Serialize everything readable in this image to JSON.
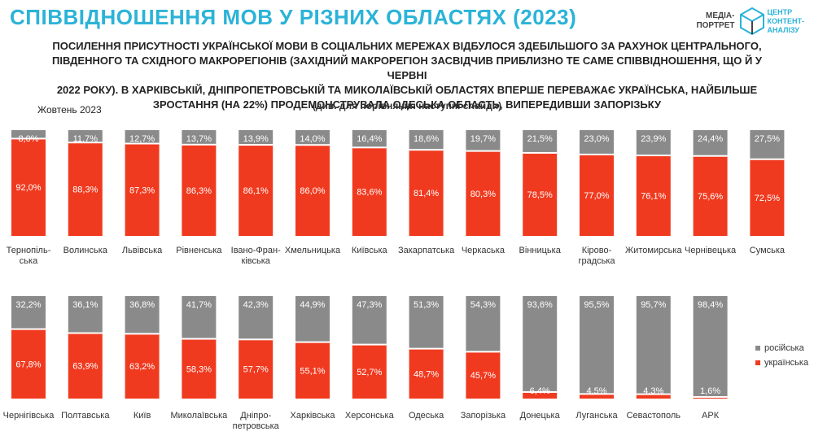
{
  "header": {
    "title": "СПІВВІДНОШЕННЯ МОВ У РІЗНИХ ОБЛАСТЯХ (2023)",
    "logo_prefix_1": "МЕДІА-",
    "logo_prefix_2": "ПОРТРЕТ",
    "logo_name_1": "ЦЕНТР",
    "logo_name_2": "КОНТЕНТ-",
    "logo_name_3": "АНАЛІЗУ"
  },
  "subtitle_lines": [
    "ПОСИЛЕННЯ ПРИСУТНОСТІ УКРАЇНСЬКОЇ МОВИ В СОЦІАЛЬНИХ МЕРЕЖАХ ВІДБУЛОСЯ ЗДЕБІЛЬШОГО ЗА РАХУНОК ЦЕНТРАЛЬНОГО,",
    "ПІВДЕННОГО ТА СХІДНОГО МАКРОРЕГІОНІВ (ЗАХІДНИЙ МАКРОРЕГІОН ЗАСВІДЧИВ ПРИБЛИЗНО ТЕ САМЕ СПІВВІДНОШЕННЯ, ЩО Й У ЧЕРВНІ",
    "2022 РОКУ). В ХАРКІВСЬКІЙ, ДНІПРОПЕТРОВСЬКІЙ ТА МИКОЛАЇВСЬКІЙ ОБЛАСТЯХ ВПЕРШЕ ПЕРЕВАЖАЄ УКРАЇНСЬКА, НАЙБІЛЬШЕ",
    "ЗРОСТАННЯ (НА 22%) ПРОДЕМОНСТРУВАЛА ОДЕСЬКА ОБЛАСТЬ, ВИПЕРЕДИВШИ ЗАПОРІЗЬКУ"
  ],
  "note": "(див. для порівняння наступні слайди)",
  "period": "Жовтень 2023",
  "legend": {
    "russian": "російська",
    "ukrainian": "українська",
    "russian_color": "#8a8a8a",
    "ukrainian_color": "#f03a1f"
  },
  "chart_data": [
    {
      "type": "bar",
      "stacked": true,
      "percent": true,
      "categories": [
        [
          "Тернопіль-",
          "ська"
        ],
        [
          "Волинська"
        ],
        [
          "Львівська"
        ],
        [
          "Рівненська"
        ],
        [
          "Івано-Фран-",
          "ківська"
        ],
        [
          "Хмельницька"
        ],
        [
          "Київська"
        ],
        [
          "Закарпатська"
        ],
        [
          "Черкаська"
        ],
        [
          "Вінницька"
        ],
        [
          "Кірово-",
          "градська"
        ],
        [
          "Житомирська"
        ],
        [
          "Чернівецька"
        ],
        [
          "Сумська"
        ]
      ],
      "series": [
        {
          "name": "українська",
          "values": [
            92.0,
            88.3,
            87.3,
            86.3,
            86.1,
            86.0,
            83.6,
            81.4,
            80.3,
            78.5,
            77.0,
            76.1,
            75.6,
            72.5
          ]
        },
        {
          "name": "російська",
          "values": [
            8.0,
            11.7,
            12.7,
            13.7,
            13.9,
            14.0,
            16.4,
            18.6,
            19.7,
            21.5,
            23.0,
            23.9,
            24.4,
            27.5
          ]
        }
      ],
      "ylim": [
        0,
        100
      ]
    },
    {
      "type": "bar",
      "stacked": true,
      "percent": true,
      "categories": [
        [
          "Чернігівська"
        ],
        [
          "Полтавська"
        ],
        [
          "Київ"
        ],
        [
          "Миколаївська"
        ],
        [
          "Дніпро-",
          "петровська"
        ],
        [
          "Харківська"
        ],
        [
          "Херсонська"
        ],
        [
          "Одеська"
        ],
        [
          "Запорізька"
        ],
        [
          "Донецька"
        ],
        [
          "Луганська"
        ],
        [
          "Севастополь"
        ],
        [
          "АРК"
        ]
      ],
      "series": [
        {
          "name": "українська",
          "values": [
            67.8,
            63.9,
            63.2,
            58.3,
            57.7,
            55.1,
            52.7,
            48.7,
            45.7,
            6.4,
            4.5,
            4.3,
            1.6
          ]
        },
        {
          "name": "російська",
          "values": [
            32.2,
            36.1,
            36.8,
            41.7,
            42.3,
            44.9,
            47.3,
            51.3,
            54.3,
            93.6,
            95.5,
            95.7,
            98.4
          ]
        }
      ],
      "ylim": [
        0,
        100
      ]
    }
  ]
}
